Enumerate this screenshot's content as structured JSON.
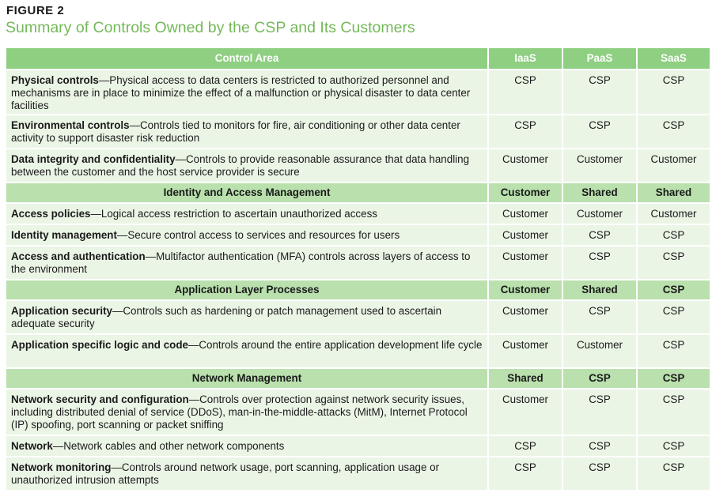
{
  "figure": {
    "label": "FIGURE 2",
    "title": "Summary of Controls Owned by the CSP and Its Customers"
  },
  "table": {
    "headers": [
      "Control Area",
      "IaaS",
      "PaaS",
      "SaaS"
    ],
    "rows": [
      {
        "type": "item",
        "name": "Physical controls",
        "desc": "—Physical access to data centers is restricted to authorized personnel and mechanisms are in place to minimize the effect of a malfunction or physical disaster to data center facilities",
        "iaas": "CSP",
        "paas": "CSP",
        "saas": "CSP"
      },
      {
        "type": "item",
        "name": "Environmental controls",
        "desc": "—Controls tied to monitors for fire, air conditioning or other data center activity to support disaster risk reduction",
        "iaas": "CSP",
        "paas": "CSP",
        "saas": "CSP"
      },
      {
        "type": "item",
        "name": "Data integrity and confidentiality",
        "desc": "—Controls to provide reasonable assurance that data handling between the customer and the host service provider is secure",
        "iaas": "Customer",
        "paas": "Customer",
        "saas": "Customer"
      },
      {
        "type": "section",
        "name": "Identity and Access Management",
        "iaas": "Customer",
        "paas": "Shared",
        "saas": "Shared"
      },
      {
        "type": "item",
        "name": "Access policies",
        "desc": "—Logical access restriction to ascertain unauthorized access",
        "iaas": "Customer",
        "paas": "Customer",
        "saas": "Customer"
      },
      {
        "type": "item",
        "name": "Identity management",
        "desc": "—Secure control access to services and resources for users",
        "iaas": "Customer",
        "paas": "CSP",
        "saas": "CSP"
      },
      {
        "type": "item",
        "name": "Access and authentication",
        "desc": "—Multifactor authentication (MFA) controls across layers of access to the environment",
        "iaas": "Customer",
        "paas": "CSP",
        "saas": "CSP"
      },
      {
        "type": "section",
        "name": "Application Layer Processes",
        "iaas": "Customer",
        "paas": "Shared",
        "saas": "CSP"
      },
      {
        "type": "item",
        "name": "Application security",
        "desc": "—Controls such as hardening or patch management used to ascertain adequate security",
        "iaas": "Customer",
        "paas": "CSP",
        "saas": "CSP"
      },
      {
        "type": "item",
        "name": "Application specific logic and code",
        "desc": "—Controls around the entire application development life cycle",
        "iaas": "Customer",
        "paas": "Customer",
        "saas": "CSP"
      },
      {
        "type": "section",
        "name": "Network Management",
        "iaas": "Shared",
        "paas": "CSP",
        "saas": "CSP"
      },
      {
        "type": "item",
        "name": "Network security and configuration",
        "desc": "—Controls over protection against network security issues, including distributed denial of service (DDoS), man-in-the-middle-attacks (MitM), Internet Protocol (IP) spoofing, port scanning or packet sniffing",
        "iaas": "Customer",
        "paas": "CSP",
        "saas": "CSP"
      },
      {
        "type": "item",
        "name": "Network",
        "desc": "—Network cables and other network components",
        "iaas": "CSP",
        "paas": "CSP",
        "saas": "CSP"
      },
      {
        "type": "item",
        "name": "Network monitoring",
        "desc": "—Controls around network usage, port scanning, application usage or unauthorized intrusion attempts",
        "iaas": "CSP",
        "paas": "CSP",
        "saas": "CSP"
      }
    ]
  },
  "colors": {
    "title": "#74b95a",
    "header_bg": "#8fcf82",
    "section_bg": "#b9e0ad",
    "row_bg": "#ebf5e6"
  }
}
